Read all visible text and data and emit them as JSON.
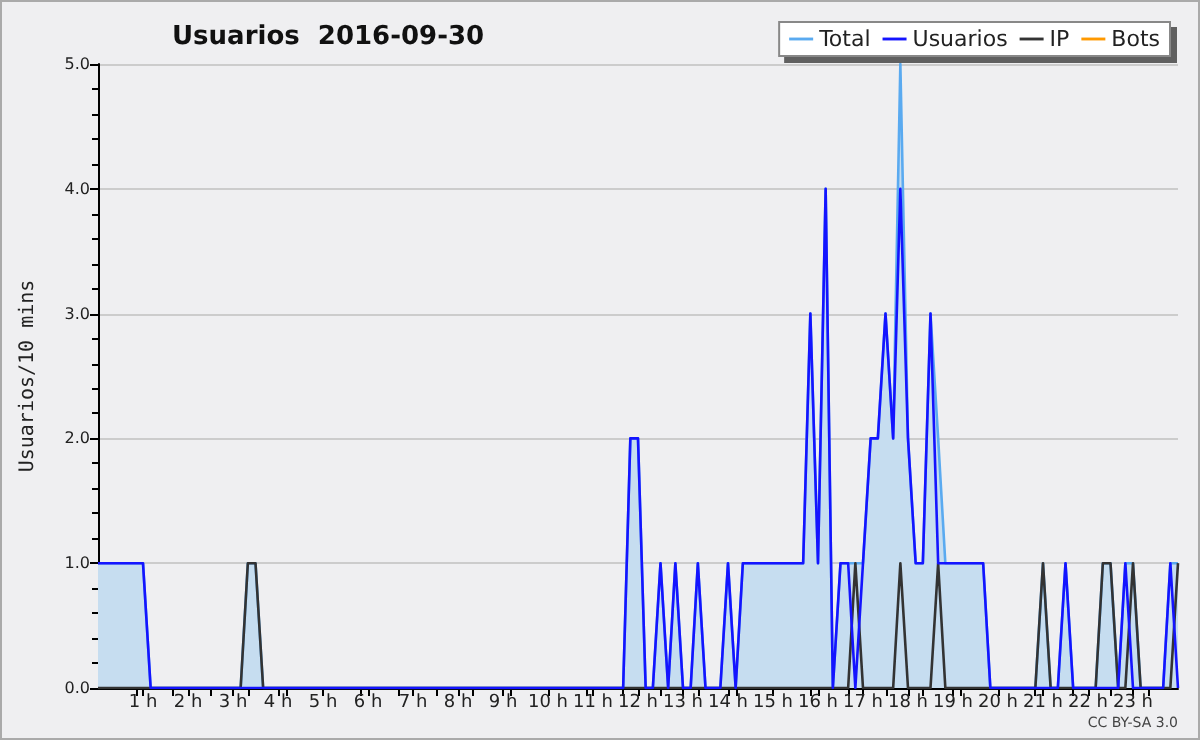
{
  "chart_data": {
    "type": "line",
    "title": "Usuarios  2016-09-30",
    "ylabel": "Usuarios/10 mins",
    "annotations": [
      "CC BY-SA 3.0"
    ],
    "x": [
      0,
      0.17,
      0.33,
      0.5,
      0.67,
      0.83,
      1,
      1.17,
      1.33,
      1.5,
      1.67,
      1.83,
      2,
      2.17,
      2.33,
      2.5,
      2.67,
      2.83,
      3,
      3.17,
      3.33,
      3.5,
      3.67,
      3.83,
      4,
      4.17,
      4.33,
      4.5,
      4.67,
      4.83,
      5,
      5.17,
      5.33,
      5.5,
      5.67,
      5.83,
      6,
      6.17,
      6.33,
      6.5,
      6.67,
      6.83,
      7,
      7.17,
      7.33,
      7.5,
      7.67,
      7.83,
      8,
      8.17,
      8.33,
      8.5,
      8.67,
      8.83,
      9,
      9.17,
      9.33,
      9.5,
      9.67,
      9.83,
      10,
      10.17,
      10.33,
      10.5,
      10.67,
      10.83,
      11,
      11.17,
      11.33,
      11.5,
      11.67,
      11.83,
      12,
      12.17,
      12.33,
      12.5,
      12.67,
      12.83,
      13,
      13.17,
      13.33,
      13.5,
      13.67,
      13.83,
      14,
      14.17,
      14.33,
      14.5,
      14.67,
      14.83,
      15,
      15.17,
      15.33,
      15.5,
      15.67,
      15.83,
      16,
      16.17,
      16.33,
      16.5,
      16.67,
      16.83,
      17,
      17.17,
      17.33,
      17.5,
      17.67,
      17.83,
      18,
      18.17,
      18.33,
      18.5,
      18.67,
      18.83,
      19,
      19.17,
      19.33,
      19.5,
      19.67,
      19.83,
      20,
      20.17,
      20.33,
      20.5,
      20.67,
      20.83,
      21,
      21.17,
      21.33,
      21.5,
      21.67,
      21.83,
      22,
      22.17,
      22.33,
      22.5,
      22.67,
      22.83,
      23,
      23.17,
      23.33,
      23.5,
      23.67,
      23.83,
      24
    ],
    "series": [
      {
        "name": "Total",
        "type": "area",
        "color": "#5aaaf0",
        "values": [
          1,
          1,
          1,
          1,
          1,
          1,
          1,
          0,
          0,
          0,
          0,
          0,
          0,
          0,
          0,
          0,
          0,
          0,
          0,
          0,
          1,
          1,
          0,
          0,
          0,
          0,
          0,
          0,
          0,
          0,
          0,
          0,
          0,
          0,
          0,
          0,
          0,
          0,
          0,
          0,
          0,
          0,
          0,
          0,
          0,
          0,
          0,
          0,
          0,
          0,
          0,
          0,
          0,
          0,
          0,
          0,
          0,
          0,
          0,
          0,
          0,
          0,
          0,
          0,
          0,
          0,
          0,
          0,
          0,
          0,
          0,
          2,
          2,
          0,
          0,
          1,
          0,
          1,
          0,
          0,
          1,
          0,
          0,
          0,
          1,
          0,
          1,
          1,
          1,
          1,
          1,
          1,
          1,
          1,
          1,
          3,
          1,
          4,
          0,
          1,
          1,
          1,
          1,
          2,
          2,
          3,
          2,
          5,
          2,
          1,
          1,
          3,
          2,
          1,
          1,
          1,
          1,
          1,
          1,
          0,
          0,
          0,
          0,
          0,
          0,
          0,
          1,
          0,
          0,
          1,
          0,
          0,
          0,
          0,
          1,
          1,
          0,
          1,
          1,
          0,
          0,
          0,
          0,
          1,
          1
        ]
      },
      {
        "name": "Usuarios",
        "color": "#1414ff",
        "values": [
          1,
          1,
          1,
          1,
          1,
          1,
          1,
          0,
          0,
          0,
          0,
          0,
          0,
          0,
          0,
          0,
          0,
          0,
          0,
          0,
          0,
          0,
          0,
          0,
          0,
          0,
          0,
          0,
          0,
          0,
          0,
          0,
          0,
          0,
          0,
          0,
          0,
          0,
          0,
          0,
          0,
          0,
          0,
          0,
          0,
          0,
          0,
          0,
          0,
          0,
          0,
          0,
          0,
          0,
          0,
          0,
          0,
          0,
          0,
          0,
          0,
          0,
          0,
          0,
          0,
          0,
          0,
          0,
          0,
          0,
          0,
          2,
          2,
          0,
          0,
          1,
          0,
          1,
          0,
          0,
          1,
          0,
          0,
          0,
          1,
          0,
          1,
          1,
          1,
          1,
          1,
          1,
          1,
          1,
          1,
          3,
          1,
          4,
          0,
          1,
          1,
          0,
          1,
          2,
          2,
          3,
          2,
          4,
          2,
          1,
          1,
          3,
          1,
          1,
          1,
          1,
          1,
          1,
          1,
          0,
          0,
          0,
          0,
          0,
          0,
          0,
          0,
          0,
          0,
          1,
          0,
          0,
          0,
          0,
          0,
          0,
          0,
          1,
          0,
          0,
          0,
          0,
          0,
          1,
          0
        ]
      },
      {
        "name": "IP",
        "color": "#333333",
        "values": [
          0,
          0,
          0,
          0,
          0,
          0,
          0,
          0,
          0,
          0,
          0,
          0,
          0,
          0,
          0,
          0,
          0,
          0,
          0,
          0,
          1,
          1,
          0,
          0,
          0,
          0,
          0,
          0,
          0,
          0,
          0,
          0,
          0,
          0,
          0,
          0,
          0,
          0,
          0,
          0,
          0,
          0,
          0,
          0,
          0,
          0,
          0,
          0,
          0,
          0,
          0,
          0,
          0,
          0,
          0,
          0,
          0,
          0,
          0,
          0,
          0,
          0,
          0,
          0,
          0,
          0,
          0,
          0,
          0,
          0,
          0,
          0,
          0,
          0,
          0,
          0,
          0,
          0,
          0,
          0,
          0,
          0,
          0,
          0,
          0,
          0,
          0,
          0,
          0,
          0,
          0,
          0,
          0,
          0,
          0,
          0,
          0,
          0,
          0,
          0,
          0,
          1,
          0,
          0,
          0,
          0,
          0,
          1,
          0,
          0,
          0,
          0,
          1,
          0,
          0,
          0,
          0,
          0,
          0,
          0,
          0,
          0,
          0,
          0,
          0,
          0,
          1,
          0,
          0,
          0,
          0,
          0,
          0,
          0,
          1,
          1,
          0,
          0,
          1,
          0,
          0,
          0,
          0,
          0,
          1
        ]
      },
      {
        "name": "Bots",
        "color": "#ff9900",
        "values": [
          null,
          null,
          null,
          null,
          null,
          null,
          null,
          null,
          null,
          null,
          null,
          null,
          null,
          null,
          null,
          null,
          null,
          null,
          null,
          null,
          null,
          null,
          null,
          null,
          null,
          null,
          null,
          null,
          null,
          null,
          null,
          null,
          null,
          null,
          null,
          null,
          null,
          null,
          null,
          null,
          null,
          null,
          null,
          null,
          null,
          null,
          null,
          null,
          null,
          null,
          null,
          null,
          null,
          null,
          null,
          null,
          null,
          null,
          null,
          null,
          null,
          null,
          null,
          null,
          null,
          null,
          null,
          null,
          null,
          null,
          null,
          null,
          null,
          null,
          null,
          null,
          null,
          null,
          null,
          null,
          null,
          null,
          null,
          null,
          null,
          null,
          null,
          null,
          null,
          null,
          null,
          null,
          null,
          null,
          null,
          null,
          null,
          null,
          null,
          null,
          null,
          null,
          null,
          null,
          null,
          null,
          null,
          null,
          null,
          null,
          null,
          null,
          null,
          null,
          null,
          null,
          null,
          null,
          null,
          null,
          null,
          null,
          null,
          null,
          null,
          null,
          null,
          null,
          null,
          null,
          null,
          null,
          null,
          null,
          null,
          null,
          null,
          null,
          null,
          null,
          null,
          null,
          null,
          null,
          null
        ]
      }
    ],
    "xlim": [
      0,
      24
    ],
    "xticks": [
      {
        "value": 1,
        "label": "1 h"
      },
      {
        "value": 2,
        "label": "2 h"
      },
      {
        "value": 3,
        "label": "3 h"
      },
      {
        "value": 4,
        "label": "4 h"
      },
      {
        "value": 5,
        "label": "5 h"
      },
      {
        "value": 6,
        "label": "6 h"
      },
      {
        "value": 7,
        "label": "7 h"
      },
      {
        "value": 8,
        "label": "8 h"
      },
      {
        "value": 9,
        "label": "9 h"
      },
      {
        "value": 10,
        "label": "10 h"
      },
      {
        "value": 11,
        "label": "11 h"
      },
      {
        "value": 12,
        "label": "12 h"
      },
      {
        "value": 13,
        "label": "13 h"
      },
      {
        "value": 14,
        "label": "14 h"
      },
      {
        "value": 15,
        "label": "15 h"
      },
      {
        "value": 16,
        "label": "16 h"
      },
      {
        "value": 17,
        "label": "17 h"
      },
      {
        "value": 18,
        "label": "18 h"
      },
      {
        "value": 19,
        "label": "19 h"
      },
      {
        "value": 20,
        "label": "20 h"
      },
      {
        "value": 21,
        "label": "21 h"
      },
      {
        "value": 22,
        "label": "22 h"
      },
      {
        "value": 23,
        "label": "23 h"
      }
    ],
    "ylim": [
      0,
      5
    ],
    "yticks": [
      {
        "value": 0,
        "label": "0.0"
      },
      {
        "value": 1,
        "label": "1.0"
      },
      {
        "value": 2,
        "label": "2.0"
      },
      {
        "value": 3,
        "label": "3.0"
      },
      {
        "value": 4,
        "label": "4.0"
      },
      {
        "value": 5,
        "label": "5.0"
      }
    ],
    "grid": "y",
    "legend": "top right",
    "marker": "none",
    "line_style": "solid"
  }
}
